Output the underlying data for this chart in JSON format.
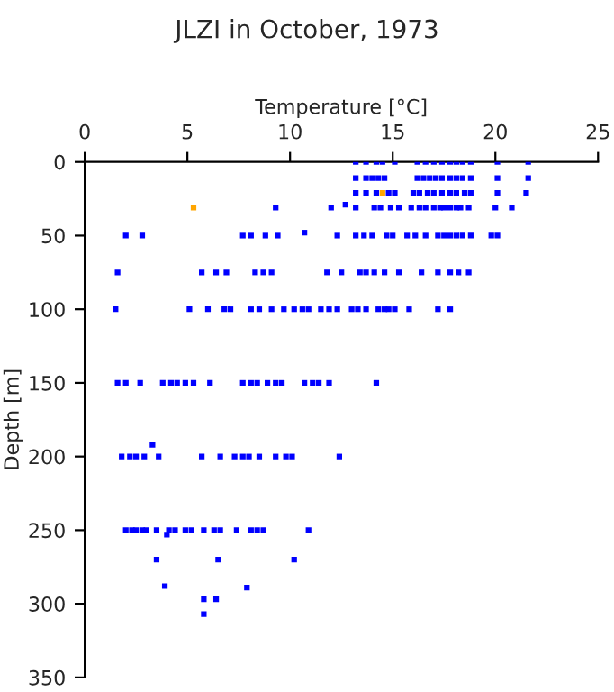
{
  "chart_data": {
    "type": "scatter",
    "title": "JLZI in October, 1973",
    "xlabel": "Temperature [°C]",
    "ylabel": "Depth [m]",
    "xlim": [
      0,
      25
    ],
    "xticks": [
      0,
      5,
      10,
      15,
      20,
      25
    ],
    "ylim": [
      350,
      0
    ],
    "yticks": [
      0,
      50,
      100,
      150,
      200,
      250,
      300,
      350
    ],
    "grid": false,
    "marker": "square",
    "series": [
      {
        "color": "#0000ff",
        "x": [
          13.2,
          13.7,
          14.2,
          14.5,
          15.1,
          16.2,
          16.6,
          17.0,
          17.4,
          17.8,
          18.1,
          18.4,
          18.8,
          20.1,
          21.6,
          13.2,
          13.7,
          14.0,
          14.3,
          14.6,
          16.2,
          16.5,
          16.8,
          17.1,
          17.4,
          17.8,
          18.1,
          18.4,
          18.8,
          20.1,
          21.6,
          13.2,
          13.7,
          14.2,
          14.8,
          15.1,
          16.0,
          16.3,
          16.7,
          17.0,
          17.4,
          17.8,
          18.1,
          18.5,
          18.8,
          20.1,
          21.5,
          9.3,
          12.0,
          12.7,
          13.2,
          14.1,
          14.4,
          14.9,
          15.3,
          15.9,
          16.3,
          16.6,
          17.0,
          17.3,
          17.5,
          17.8,
          18.1,
          18.3,
          18.7,
          20.0,
          20.8,
          2.0,
          2.8,
          7.7,
          8.1,
          8.8,
          9.4,
          10.7,
          12.3,
          13.2,
          13.6,
          14.0,
          14.7,
          15.0,
          15.7,
          16.1,
          16.6,
          17.2,
          17.5,
          17.8,
          18.1,
          18.4,
          18.8,
          19.8,
          20.1,
          1.6,
          5.7,
          6.4,
          6.9,
          8.3,
          8.7,
          9.1,
          11.8,
          12.5,
          13.4,
          13.7,
          14.1,
          14.6,
          15.3,
          16.4,
          17.2,
          17.8,
          18.2,
          18.7,
          1.5,
          5.1,
          6.0,
          6.8,
          7.1,
          8.1,
          8.5,
          9.1,
          9.7,
          10.2,
          10.6,
          10.9,
          11.5,
          11.9,
          12.3,
          13.0,
          13.3,
          13.7,
          14.3,
          14.6,
          14.8,
          15.1,
          15.8,
          17.2,
          17.8,
          1.6,
          2.0,
          2.7,
          3.8,
          4.2,
          4.5,
          4.9,
          5.3,
          6.1,
          7.7,
          8.1,
          8.4,
          8.9,
          9.3,
          9.6,
          10.7,
          11.1,
          11.4,
          11.9,
          14.2,
          3.3,
          1.8,
          2.2,
          2.5,
          2.9,
          3.6,
          5.7,
          6.6,
          7.3,
          7.7,
          8.0,
          8.5,
          9.3,
          9.8,
          10.1,
          12.4,
          2.0,
          2.3,
          2.5,
          2.8,
          3.0,
          3.5,
          4.1,
          4.4,
          4.9,
          5.2,
          5.8,
          6.3,
          6.6,
          7.4,
          8.1,
          8.4,
          8.7,
          10.9,
          4.0,
          3.5,
          6.5,
          10.2,
          3.9,
          7.9,
          5.8,
          6.4,
          5.8
        ],
        "values": [
          0,
          0,
          0,
          0,
          0,
          0,
          0,
          0,
          0,
          0,
          0,
          0,
          0,
          0,
          0,
          11,
          11,
          11,
          11,
          11,
          11,
          11,
          11,
          11,
          11,
          11,
          11,
          11,
          11,
          11,
          11,
          21,
          21,
          21,
          21,
          21,
          21,
          21,
          21,
          21,
          21,
          21,
          21,
          21,
          21,
          21,
          21,
          31,
          31,
          29,
          31,
          31,
          31,
          31,
          31,
          31,
          31,
          31,
          31,
          31,
          31,
          31,
          31,
          31,
          31,
          31,
          31,
          50,
          50,
          50,
          50,
          50,
          50,
          48,
          50,
          50,
          50,
          50,
          50,
          50,
          50,
          50,
          50,
          50,
          50,
          50,
          50,
          50,
          50,
          50,
          50,
          75,
          75,
          75,
          75,
          75,
          75,
          75,
          75,
          75,
          75,
          75,
          75,
          75,
          75,
          75,
          75,
          75,
          75,
          75,
          100,
          100,
          100,
          100,
          100,
          100,
          100,
          100,
          100,
          100,
          100,
          100,
          100,
          100,
          100,
          100,
          100,
          100,
          100,
          100,
          100,
          100,
          100,
          100,
          100,
          150,
          150,
          150,
          150,
          150,
          150,
          150,
          150,
          150,
          150,
          150,
          150,
          150,
          150,
          150,
          150,
          150,
          150,
          150,
          150,
          192,
          200,
          200,
          200,
          200,
          200,
          200,
          200,
          200,
          200,
          200,
          200,
          200,
          200,
          200,
          200,
          250,
          250,
          250,
          250,
          250,
          250,
          250,
          250,
          250,
          250,
          250,
          250,
          250,
          250,
          250,
          250,
          250,
          250,
          253,
          270,
          270,
          270,
          288,
          289,
          297,
          297,
          307
        ]
      },
      {
        "color": "#ffa500",
        "x": [
          14.5,
          5.3
        ],
        "values": [
          21,
          31
        ]
      }
    ]
  }
}
